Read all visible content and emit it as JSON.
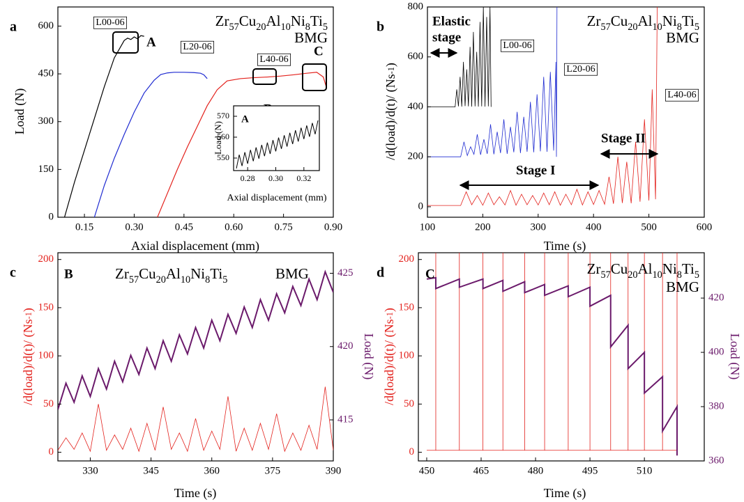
{
  "chart_data": [
    {
      "type": "line",
      "panel": "a",
      "formula": [
        "Zr",
        "57",
        "Cu",
        "20",
        "Al",
        "10",
        "Ni",
        "8",
        "Ti",
        "5"
      ],
      "bmg_label": "BMG",
      "xlabel": "Axial displacement (mm)",
      "ylabel": "Load (N)",
      "xlim": [
        0.07,
        0.9
      ],
      "xticks": [
        0.15,
        {
          "value": 0.3,
          "label": "0.30"
        },
        0.45,
        {
          "value": 0.6,
          "label": "0.60"
        },
        0.75,
        {
          "value": 0.9,
          "label": "0.90"
        }
      ],
      "ylim": [
        0,
        660
      ],
      "yticks": [
        0,
        150,
        300,
        450,
        600
      ],
      "annotations": [
        "A",
        "B",
        "C"
      ],
      "series": [
        {
          "name": "L00-06",
          "color": "#000000",
          "x": [
            0.09,
            0.12,
            0.15,
            0.18,
            0.21,
            0.24,
            0.27,
            0.28,
            0.29,
            0.3,
            0.31,
            0.32,
            0.33
          ],
          "values": [
            0,
            110,
            210,
            310,
            410,
            500,
            555,
            562,
            558,
            566,
            560,
            570,
            568
          ]
        },
        {
          "name": "L20-06",
          "color": "#1f2bd1",
          "x": [
            0.18,
            0.21,
            0.24,
            0.27,
            0.3,
            0.33,
            0.36,
            0.38,
            0.4,
            0.42,
            0.45,
            0.48,
            0.5,
            0.51,
            0.52
          ],
          "values": [
            0,
            100,
            185,
            260,
            330,
            390,
            430,
            448,
            453,
            455,
            455,
            454,
            452,
            447,
            435
          ]
        },
        {
          "name": "L40-06",
          "color": "#e3211c",
          "x": [
            0.37,
            0.4,
            0.43,
            0.46,
            0.49,
            0.52,
            0.55,
            0.58,
            0.62,
            0.66,
            0.7,
            0.74,
            0.78,
            0.82,
            0.85,
            0.87,
            0.88
          ],
          "values": [
            0,
            75,
            150,
            220,
            285,
            350,
            400,
            428,
            435,
            438,
            440,
            443,
            447,
            452,
            455,
            440,
            405
          ]
        }
      ]
    },
    {
      "type": "line",
      "xlabel": "Axial displacement (mm)",
      "ylabel": "Load (N)",
      "annotations": [
        "A"
      ],
      "xlim": [
        0.27,
        0.331
      ],
      "xticks": [
        0.28,
        {
          "value": 0.3,
          "label": "0.30"
        },
        0.32
      ],
      "ylim": [
        544,
        575
      ],
      "yticks": [
        550,
        560,
        570
      ],
      "series": [
        {
          "color": "#000000",
          "x": [
            0.272,
            0.274,
            0.276,
            0.278,
            0.28,
            0.282,
            0.284,
            0.286,
            0.288,
            0.29,
            0.292,
            0.294,
            0.296,
            0.298,
            0.3,
            0.302,
            0.304,
            0.306,
            0.308,
            0.31,
            0.312,
            0.314,
            0.316,
            0.318,
            0.32,
            0.322,
            0.324,
            0.326,
            0.328,
            0.33
          ],
          "values": [
            545.0,
            551.6,
            546.2,
            552.8,
            547.3,
            553.9,
            548.5,
            555.1,
            549.7,
            556.3,
            550.9,
            557.4,
            552.0,
            558.6,
            553.2,
            559.8,
            554.4,
            560.9,
            555.5,
            562.1,
            556.7,
            563.3,
            557.9,
            564.5,
            559.1,
            565.6,
            560.2,
            566.8,
            561.4,
            568.0
          ]
        }
      ]
    },
    {
      "type": "line",
      "panel": "b",
      "formula": [
        "Zr",
        "57",
        "Cu",
        "20",
        "Al",
        "10",
        "Ni",
        "8",
        "Ti",
        "5"
      ],
      "bmg_label": "BMG",
      "xlabel": "Time (s)",
      "ylabel": [
        "/d(load)/d(t)/ (Ns",
        "-1",
        ")"
      ],
      "xlim": [
        100,
        600
      ],
      "xticks": [
        100,
        200,
        300,
        400,
        500,
        600
      ],
      "ylim": [
        -42,
        800
      ],
      "yticks": [
        0,
        200,
        400,
        600,
        800
      ],
      "annotations": [
        "Elastic",
        "stage",
        "Stage I",
        "Stage II"
      ],
      "series": [
        {
          "name": "L00-06",
          "color": "#000000",
          "x": [
            100,
            150,
            153,
            156,
            159,
            162,
            165,
            168,
            171,
            174,
            177,
            180,
            183,
            186,
            189,
            192,
            195,
            198,
            201,
            204,
            207,
            210,
            213,
            215
          ],
          "values": [
            400,
            400,
            470,
            402,
            520,
            401,
            580,
            403,
            550,
            402,
            640,
            401,
            700,
            402,
            620,
            401,
            740,
            402,
            800,
            401,
            760,
            402,
            800,
            400
          ]
        },
        {
          "name": "L20-06",
          "color": "#1f2bd1",
          "x": [
            100,
            160,
            166,
            172,
            178,
            184,
            190,
            196,
            202,
            208,
            214,
            220,
            226,
            232,
            238,
            244,
            250,
            256,
            262,
            268,
            274,
            280,
            286,
            292,
            298,
            304,
            310,
            316,
            322,
            328,
            332,
            333,
            334
          ],
          "values": [
            200,
            200,
            260,
            205,
            240,
            210,
            290,
            208,
            270,
            212,
            330,
            210,
            300,
            215,
            350,
            212,
            320,
            218,
            380,
            215,
            360,
            220,
            420,
            218,
            450,
            222,
            520,
            220,
            540,
            225,
            580,
            200,
            800
          ]
        },
        {
          "name": "L40-06",
          "color": "#e3211c",
          "x": [
            100,
            160,
            170,
            180,
            190,
            200,
            210,
            220,
            230,
            240,
            250,
            260,
            270,
            280,
            290,
            300,
            310,
            320,
            330,
            340,
            350,
            360,
            370,
            380,
            390,
            400,
            410,
            420,
            428,
            436,
            444,
            452,
            460,
            468,
            476,
            484,
            492,
            500,
            506,
            512,
            514,
            515
          ],
          "values": [
            5,
            5,
            60,
            8,
            45,
            6,
            55,
            8,
            40,
            7,
            65,
            6,
            50,
            8,
            45,
            7,
            55,
            8,
            60,
            6,
            50,
            8,
            70,
            7,
            60,
            9,
            65,
            10,
            120,
            12,
            200,
            15,
            180,
            14,
            260,
            20,
            350,
            25,
            470,
            30,
            530,
            800
          ]
        }
      ]
    },
    {
      "type": "line",
      "panel": "c",
      "formula": [
        "Zr",
        "57",
        "Cu",
        "20",
        "Al",
        "10",
        "Ni",
        "8",
        "Ti",
        "5"
      ],
      "bmg_label": "BMG",
      "xlabel": "Time (s)",
      "ylabel": [
        "/d(load)/d(t)/ (Ns",
        "-1",
        ")"
      ],
      "y2label": "Load (N)",
      "ycolor": "#e3211c",
      "y2color": "#6b1a6b",
      "xlim": [
        322,
        390
      ],
      "xticks": [
        330,
        345,
        360,
        375,
        390
      ],
      "ylim": [
        -9,
        207
      ],
      "yticks": [
        0,
        50,
        100,
        150,
        200
      ],
      "y2lim": [
        412.2,
        426.4
      ],
      "y2ticks": [
        415,
        420,
        425
      ],
      "annotations": [
        "B"
      ],
      "series": [
        {
          "color": "#e3211c",
          "x": [
            322,
            324,
            326,
            328,
            330,
            332,
            334,
            336,
            338,
            340,
            342,
            344,
            346,
            348,
            350,
            352,
            354,
            356,
            358,
            360,
            362,
            364,
            366,
            368,
            370,
            372,
            374,
            376,
            378,
            380,
            382,
            384,
            386,
            388,
            390
          ],
          "values": [
            2,
            15,
            3,
            20,
            1,
            50,
            2,
            18,
            3,
            25,
            1,
            30,
            2,
            47,
            3,
            20,
            1,
            35,
            2,
            22,
            3,
            58,
            1,
            25,
            2,
            30,
            3,
            40,
            1,
            20,
            2,
            28,
            3,
            68,
            2
          ]
        },
        {
          "color": "#6b1a6b",
          "axis": "y2",
          "x": [
            322,
            324,
            326,
            328,
            330,
            332,
            334,
            336,
            338,
            340,
            342,
            344,
            346,
            348,
            350,
            352,
            354,
            356,
            358,
            360,
            362,
            364,
            366,
            368,
            370,
            372,
            374,
            376,
            378,
            380,
            382,
            384,
            386,
            388,
            390
          ],
          "values": [
            415.7,
            417.5,
            416.2,
            418.0,
            416.6,
            418.5,
            417.1,
            419.0,
            417.6,
            419.4,
            418.1,
            419.9,
            418.5,
            420.4,
            419.0,
            420.8,
            419.5,
            421.3,
            419.9,
            421.8,
            420.4,
            422.2,
            420.9,
            422.7,
            421.3,
            423.2,
            421.8,
            423.6,
            422.3,
            424.1,
            422.8,
            424.6,
            423.2,
            425.1,
            423.7
          ]
        }
      ]
    },
    {
      "type": "line",
      "panel": "d",
      "formula": [
        "Zr",
        "57",
        "Cu",
        "20",
        "Al",
        "10",
        "Ni",
        "8",
        "Ti",
        "5"
      ],
      "bmg_label": "BMG",
      "xlabel": "Time (s)",
      "ylabel": [
        "/d(load)/d(t)/ (Ns",
        "-1",
        ")"
      ],
      "y2label": "Load (N)",
      "ycolor": "#e3211c",
      "y2color": "#6b1a6b",
      "xlim": [
        447.7,
        526.5
      ],
      "xticks": [
        450,
        465,
        480,
        495,
        510
      ],
      "ylim": [
        -9,
        207
      ],
      "yticks": [
        0,
        50,
        100,
        150,
        200
      ],
      "y2lim": [
        360,
        436.7
      ],
      "y2ticks": [
        360,
        380,
        400,
        420
      ],
      "annotations": [
        "C"
      ],
      "series": [
        {
          "color": "#e3211c",
          "x": [
            450,
            452.5,
            452.5,
            452.5,
            459,
            459,
            459,
            465.5,
            465.5,
            465.5,
            471,
            471,
            471,
            477,
            477,
            477,
            482.5,
            482.5,
            482.5,
            489,
            489,
            489,
            495,
            495,
            495,
            500.7,
            500.7,
            500.7,
            505.5,
            505.5,
            505.5,
            510,
            510,
            510,
            515,
            515,
            515,
            519,
            519,
            519
          ],
          "values": [
            2,
            2,
            250,
            2,
            2,
            250,
            2,
            2,
            250,
            2,
            2,
            250,
            2,
            2,
            250,
            2,
            2,
            250,
            2,
            2,
            250,
            2,
            2,
            250,
            2,
            2,
            250,
            2,
            2,
            250,
            2,
            2,
            250,
            2,
            2,
            250,
            2,
            2,
            250,
            2
          ]
        },
        {
          "color": "#6b1a6b",
          "axis": "y2",
          "x": [
            450,
            452.5,
            452.5,
            459,
            459,
            465.5,
            465.5,
            471,
            471,
            477,
            477,
            482.5,
            482.5,
            489,
            489,
            495,
            495,
            500.7,
            500.7,
            505.5,
            505.5,
            510,
            510,
            515,
            515,
            519,
            519
          ],
          "values": [
            427,
            427.5,
            423.5,
            427,
            424,
            427,
            423.5,
            426.5,
            422.5,
            426,
            422,
            425,
            421,
            424.5,
            420.5,
            424,
            417,
            421,
            402,
            410,
            394,
            400,
            385,
            391,
            371,
            380,
            362
          ]
        }
      ]
    }
  ]
}
